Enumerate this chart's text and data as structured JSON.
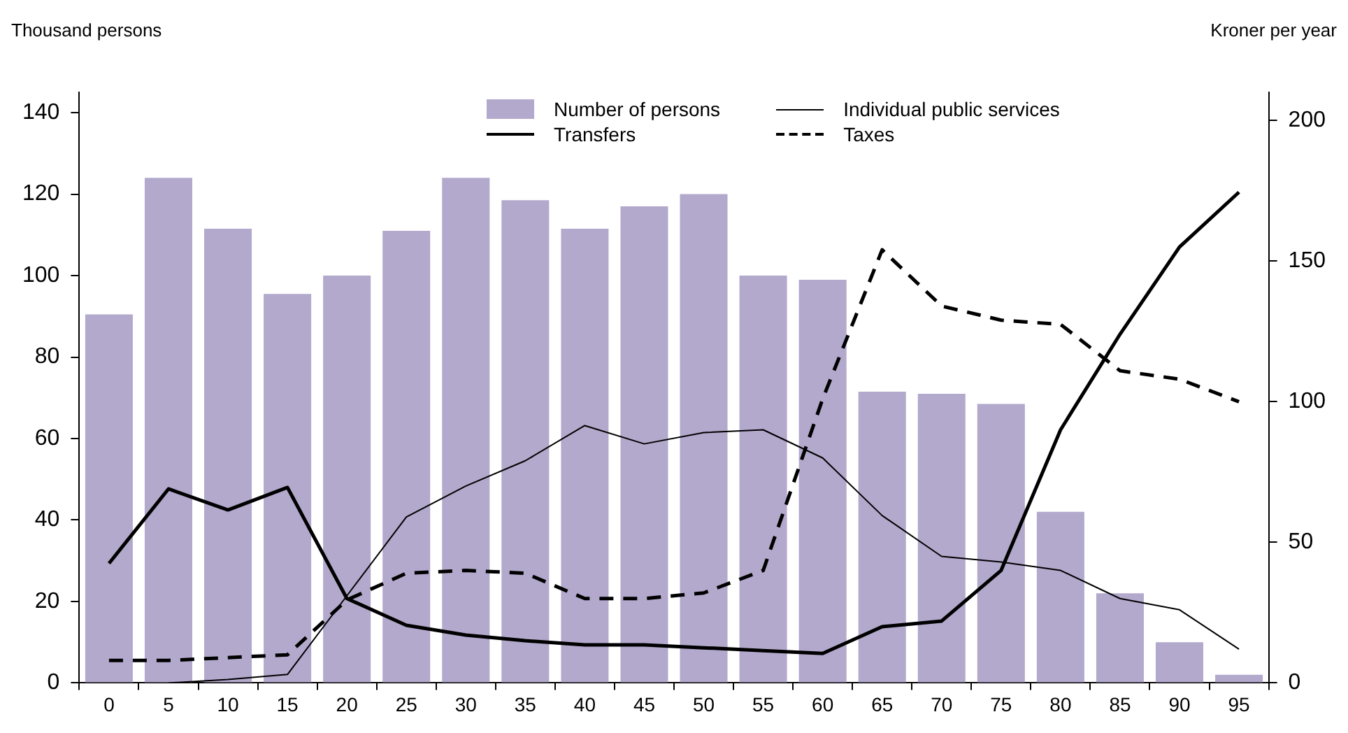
{
  "chart_data": {
    "type": "bar",
    "ylabel": "Thousand persons",
    "y2label": "Kroner per year",
    "categories": [
      "0",
      "5",
      "10",
      "15",
      "20",
      "25",
      "30",
      "35",
      "40",
      "45",
      "50",
      "55",
      "60",
      "65",
      "70",
      "75",
      "80",
      "85",
      "90",
      "95"
    ],
    "series": [
      {
        "name": "Number of persons",
        "color": "#b3a9cc",
        "values": [
          90.5,
          124,
          111.5,
          95.5,
          100,
          111,
          124,
          118.5,
          111.5,
          117,
          120,
          100,
          99,
          71.5,
          71,
          68.5,
          42,
          22,
          10,
          2
        ]
      },
      {
        "name": "Transfers",
        "type": "line",
        "axis": "y2",
        "color": "#000000",
        "line_style": "solid",
        "values": [
          42.5,
          69,
          61.5,
          69.5,
          30,
          20.5,
          17,
          15,
          13.5,
          13.5,
          12.5,
          11.5,
          10.5,
          20,
          22,
          40,
          90,
          124,
          155,
          174.5
        ]
      },
      {
        "name": "Individual public services",
        "type": "line",
        "axis": "y2",
        "color": "#000000",
        "line_style": "solid",
        "values": [
          null,
          0,
          1.2,
          3,
          31,
          59,
          70,
          79,
          91.5,
          85,
          89,
          90,
          80,
          59.5,
          45,
          43,
          40,
          30,
          26,
          12
        ]
      },
      {
        "name": "Taxes",
        "type": "line",
        "axis": "y2",
        "color": "#000000",
        "line_style": "dashed",
        "values": [
          8,
          8,
          9,
          10,
          29.5,
          39,
          40,
          39,
          30,
          30,
          32,
          40,
          101,
          154,
          134,
          129,
          127.5,
          111,
          108,
          100
        ]
      }
    ],
    "ylim": [
      0,
      145
    ],
    "yticks": [
      0,
      20,
      40,
      60,
      80,
      100,
      120,
      140
    ],
    "y2lim": [
      0,
      210
    ],
    "y2ticks": [
      0,
      50,
      100,
      150,
      200
    ],
    "grid": false,
    "legend": "top",
    "marker": "none"
  }
}
